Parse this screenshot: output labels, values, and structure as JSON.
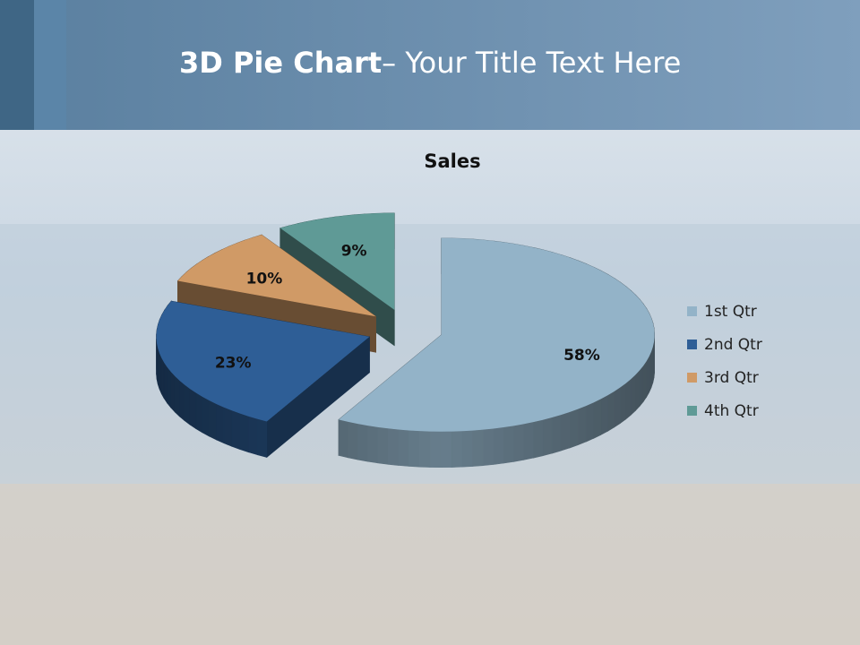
{
  "slide": {
    "title_bold": "3D Pie Chart",
    "title_rest": "– Your Title Text Here"
  },
  "chart_data": {
    "type": "pie",
    "title": "Sales",
    "categories": [
      "1st Qtr",
      "2nd Qtr",
      "3rd Qtr",
      "4th Qtr"
    ],
    "values": [
      58,
      23,
      10,
      9
    ],
    "value_labels": [
      "58%",
      "23%",
      "10%",
      "9%"
    ],
    "colors": [
      "#93b3c8",
      "#2e5e96",
      "#d09a66",
      "#5f9a96"
    ],
    "legend": "right"
  }
}
